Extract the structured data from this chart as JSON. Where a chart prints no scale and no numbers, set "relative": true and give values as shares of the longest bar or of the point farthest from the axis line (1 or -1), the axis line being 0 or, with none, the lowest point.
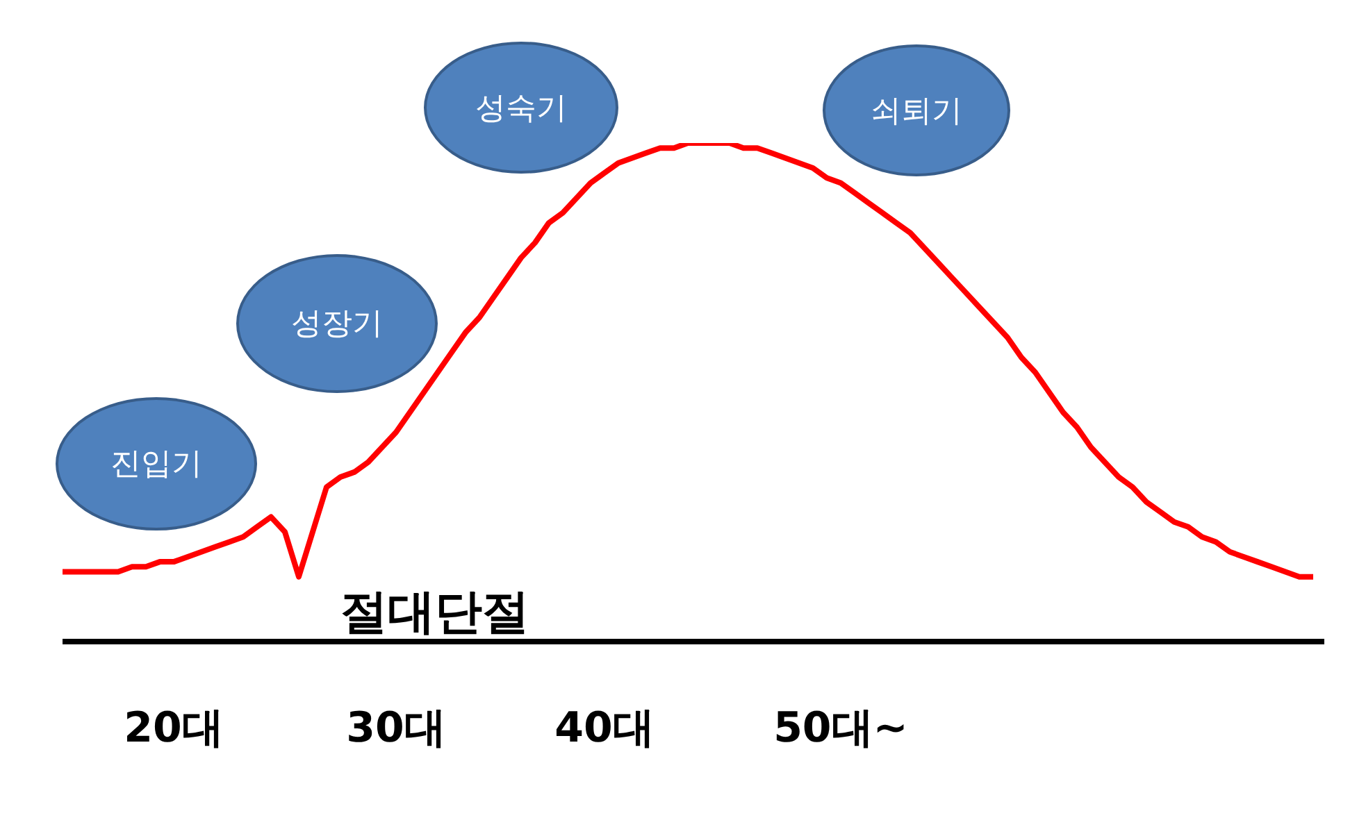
{
  "chart_data": {
    "type": "line",
    "relative": true,
    "categories": [
      null,
      null,
      null,
      null,
      null,
      null,
      null,
      null,
      "20대",
      null,
      null,
      null,
      null,
      null,
      null,
      null,
      null,
      null,
      null,
      null,
      null,
      null,
      null,
      null,
      "30대",
      null,
      null,
      null,
      null,
      null,
      null,
      null,
      null,
      null,
      null,
      null,
      null,
      null,
      null,
      "40대",
      null,
      null,
      null,
      null,
      null,
      null,
      null,
      null,
      null,
      null,
      null,
      null,
      null,
      null,
      null,
      null,
      "50대~",
      null,
      null,
      null,
      null,
      null,
      null,
      null,
      null,
      null,
      null,
      null,
      null,
      null,
      null,
      null,
      null,
      null,
      null,
      null,
      null,
      null,
      null,
      null,
      null,
      null,
      null,
      null,
      null,
      null,
      null,
      null,
      null,
      null,
      null
    ],
    "series": [
      {
        "color": "#ff0000",
        "values": [
          0.14,
          0.14,
          0.14,
          0.14,
          0.14,
          0.15,
          0.15,
          0.16,
          0.16,
          0.17,
          0.18,
          0.19,
          0.2,
          0.21,
          0.23,
          0.25,
          0.22,
          0.13,
          0.22,
          0.31,
          0.33,
          0.34,
          0.36,
          0.39,
          0.42,
          0.46,
          0.5,
          0.54,
          0.58,
          0.62,
          0.65,
          0.69,
          0.73,
          0.77,
          0.8,
          0.84,
          0.86,
          0.89,
          0.92,
          0.94,
          0.96,
          0.97,
          0.98,
          0.99,
          0.99,
          1,
          1,
          1,
          1,
          0.99,
          0.99,
          0.98,
          0.97,
          0.96,
          0.95,
          0.93,
          0.92,
          0.9,
          0.88,
          0.86,
          0.84,
          0.82,
          0.79,
          0.76,
          0.73,
          0.7,
          0.67,
          0.64,
          0.61,
          0.57,
          0.54,
          0.5,
          0.46,
          0.43,
          0.39,
          0.36,
          0.33,
          0.31,
          0.28,
          0.26,
          0.24,
          0.23,
          0.21,
          0.2,
          0.18,
          0.17,
          0.16,
          0.15,
          0.14,
          0.13,
          0.13
        ]
      }
    ],
    "annotations": [
      "진입기",
      "성장기",
      "성숙기",
      "쇠퇴기",
      "절대단절"
    ]
  }
}
